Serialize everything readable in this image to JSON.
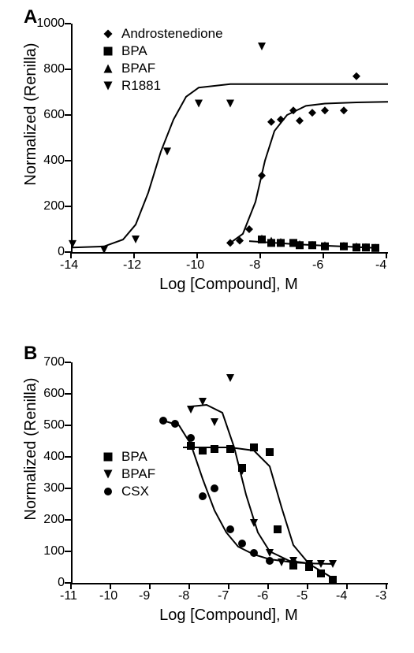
{
  "panelA": {
    "label": "A",
    "type": "scatter-line",
    "x_axis_label": "Log [Compound], M",
    "y_axis_label": "Normalized (Renilla)",
    "xlim": [
      -14,
      -4
    ],
    "ylim": [
      0,
      1000
    ],
    "xtick_step": 2,
    "ytick_step": 200,
    "xtick_labels": [
      "-14",
      "-12",
      "-10",
      "-8",
      "-6",
      "-4"
    ],
    "ytick_labels": [
      "0",
      "200",
      "400",
      "600",
      "800",
      "1000"
    ],
    "label_fontsize": 20,
    "tick_fontsize": 16,
    "background_color": "#ffffff",
    "series_color": "#000000",
    "line_width": 2,
    "marker_size": 10,
    "series": [
      {
        "name": "Androstenedione",
        "marker": "diamond",
        "points": [
          [
            -9.0,
            40
          ],
          [
            -8.7,
            50
          ],
          [
            -8.4,
            100
          ],
          [
            -8.0,
            335
          ],
          [
            -7.7,
            570
          ],
          [
            -7.4,
            580
          ],
          [
            -7.0,
            620
          ],
          [
            -6.8,
            575
          ],
          [
            -6.4,
            610
          ],
          [
            -6.0,
            620
          ],
          [
            -5.4,
            620
          ],
          [
            -5.0,
            770
          ]
        ],
        "curve": [
          [
            -9.0,
            40
          ],
          [
            -8.6,
            80
          ],
          [
            -8.2,
            220
          ],
          [
            -7.9,
            400
          ],
          [
            -7.6,
            530
          ],
          [
            -7.2,
            600
          ],
          [
            -6.6,
            640
          ],
          [
            -6.0,
            650
          ],
          [
            -5.0,
            655
          ],
          [
            -4.0,
            658
          ]
        ]
      },
      {
        "name": "BPA",
        "marker": "square",
        "points": [
          [
            -8.0,
            55
          ],
          [
            -7.7,
            40
          ],
          [
            -7.4,
            40
          ],
          [
            -7.0,
            40
          ],
          [
            -6.8,
            30
          ],
          [
            -6.4,
            30
          ],
          [
            -6.0,
            25
          ],
          [
            -5.4,
            25
          ],
          [
            -5.0,
            20
          ],
          [
            -4.7,
            20
          ],
          [
            -4.4,
            18
          ]
        ],
        "curve": [
          [
            -8.4,
            48
          ],
          [
            -7.8,
            42
          ],
          [
            -7.0,
            35
          ],
          [
            -6.0,
            28
          ],
          [
            -5.0,
            22
          ],
          [
            -4.4,
            18
          ]
        ]
      },
      {
        "name": "BPAF",
        "marker": "triangle-up",
        "points": [
          [
            -8.0,
            60
          ],
          [
            -7.7,
            50
          ],
          [
            -7.4,
            45
          ],
          [
            -7.0,
            40
          ],
          [
            -6.8,
            35
          ],
          [
            -6.4,
            32
          ],
          [
            -6.0,
            30
          ],
          [
            -5.4,
            28
          ],
          [
            -5.0,
            25
          ],
          [
            -4.7,
            22
          ],
          [
            -4.4,
            20
          ]
        ]
      },
      {
        "name": "R1881",
        "marker": "triangle-down",
        "points": [
          [
            -14.0,
            35
          ],
          [
            -13.0,
            10
          ],
          [
            -12.0,
            55
          ],
          [
            -11.0,
            440
          ],
          [
            -10.0,
            650
          ],
          [
            -9.0,
            650
          ],
          [
            -8.0,
            900
          ]
        ],
        "curve": [
          [
            -14.0,
            20
          ],
          [
            -13.0,
            25
          ],
          [
            -12.4,
            55
          ],
          [
            -12.0,
            120
          ],
          [
            -11.6,
            260
          ],
          [
            -11.2,
            440
          ],
          [
            -10.8,
            580
          ],
          [
            -10.4,
            680
          ],
          [
            -10.0,
            720
          ],
          [
            -9.0,
            735
          ],
          [
            -8.0,
            735
          ],
          [
            -6.0,
            735
          ],
          [
            -4.0,
            735
          ]
        ]
      }
    ],
    "legend_pos": "inside-top-left"
  },
  "panelB": {
    "label": "B",
    "type": "scatter-line",
    "x_axis_label": "Log [Compound], M",
    "y_axis_label": "Normalized (Renilla)",
    "xlim": [
      -11,
      -3
    ],
    "ylim": [
      0,
      700
    ],
    "xtick_step": 1,
    "ytick_step": 100,
    "xtick_labels": [
      "-11",
      "-10",
      "-9",
      "-8",
      "-7",
      "-6",
      "-5",
      "-4",
      "-3"
    ],
    "ytick_labels": [
      "0",
      "100",
      "200",
      "300",
      "400",
      "500",
      "600",
      "700"
    ],
    "label_fontsize": 20,
    "tick_fontsize": 16,
    "background_color": "#ffffff",
    "series_color": "#000000",
    "line_width": 2,
    "marker_size": 10,
    "series": [
      {
        "name": "BPA",
        "marker": "square",
        "points": [
          [
            -8.0,
            435
          ],
          [
            -7.7,
            420
          ],
          [
            -7.4,
            425
          ],
          [
            -7.0,
            425
          ],
          [
            -6.7,
            365
          ],
          [
            -6.4,
            430
          ],
          [
            -6.0,
            415
          ],
          [
            -5.8,
            170
          ],
          [
            -5.4,
            55
          ],
          [
            -5.0,
            50
          ],
          [
            -4.7,
            30
          ],
          [
            -4.4,
            10
          ]
        ],
        "curve": [
          [
            -8.2,
            430
          ],
          [
            -7.0,
            430
          ],
          [
            -6.4,
            420
          ],
          [
            -6.0,
            370
          ],
          [
            -5.7,
            240
          ],
          [
            -5.4,
            120
          ],
          [
            -5.0,
            60
          ],
          [
            -4.4,
            15
          ]
        ]
      },
      {
        "name": "BPAF",
        "marker": "triangle-down",
        "points": [
          [
            -8.0,
            550
          ],
          [
            -7.7,
            575
          ],
          [
            -7.4,
            510
          ],
          [
            -7.0,
            650
          ],
          [
            -6.7,
            355
          ],
          [
            -6.4,
            190
          ],
          [
            -6.0,
            95
          ],
          [
            -5.7,
            65
          ],
          [
            -5.4,
            70
          ],
          [
            -5.0,
            60
          ],
          [
            -4.7,
            60
          ],
          [
            -4.4,
            60
          ]
        ],
        "curve": [
          [
            -8.0,
            560
          ],
          [
            -7.6,
            565
          ],
          [
            -7.2,
            540
          ],
          [
            -6.9,
            430
          ],
          [
            -6.6,
            280
          ],
          [
            -6.3,
            160
          ],
          [
            -6.0,
            100
          ],
          [
            -5.5,
            70
          ],
          [
            -5.0,
            62
          ],
          [
            -4.4,
            60
          ]
        ]
      },
      {
        "name": "CSX",
        "marker": "circle",
        "points": [
          [
            -8.7,
            515
          ],
          [
            -8.4,
            505
          ],
          [
            -8.0,
            460
          ],
          [
            -7.7,
            275
          ],
          [
            -7.4,
            300
          ],
          [
            -7.0,
            170
          ],
          [
            -6.7,
            125
          ],
          [
            -6.4,
            95
          ],
          [
            -6.0,
            70
          ],
          [
            -5.4,
            63
          ],
          [
            -5.0,
            60
          ]
        ],
        "curve": [
          [
            -8.7,
            515
          ],
          [
            -8.3,
            500
          ],
          [
            -8.0,
            440
          ],
          [
            -7.7,
            330
          ],
          [
            -7.4,
            230
          ],
          [
            -7.1,
            160
          ],
          [
            -6.8,
            115
          ],
          [
            -6.4,
            90
          ],
          [
            -6.0,
            75
          ],
          [
            -5.4,
            65
          ],
          [
            -5.0,
            62
          ]
        ]
      }
    ],
    "legend_pos": "inside-left"
  }
}
